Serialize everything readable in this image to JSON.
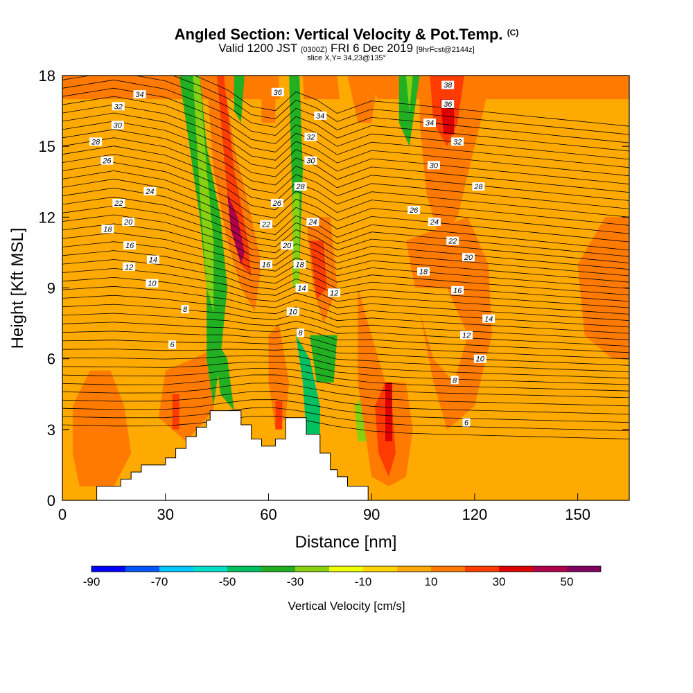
{
  "header": {
    "title": "Angled Section: Vertical Velocity & Pot.Temp.",
    "title_mark": "(C)",
    "subtitle_main": "Valid 1200 JST",
    "subtitle_utc": "(0300Z)",
    "subtitle_date": "FRI 6 Dec 2019",
    "subtitle_fcst": "[9hrFcst@2144z]",
    "slice_info": "slice X,Y= 34,23@135°"
  },
  "chart_data": {
    "type": "heatmap",
    "xlabel": "Distance [nm]",
    "ylabel": "Height [Kft MSL]",
    "xlim": [
      0,
      165
    ],
    "ylim": [
      0,
      18
    ],
    "x_ticks": [
      0,
      30,
      60,
      90,
      120,
      150
    ],
    "y_ticks": [
      0,
      3,
      6,
      9,
      12,
      15,
      18
    ],
    "colorbar": {
      "label": "Vertical Velocity [cm/s]",
      "tick_labels": [
        -90,
        -70,
        -50,
        -30,
        -10,
        10,
        30,
        50
      ],
      "range": [
        -90,
        60
      ],
      "colors": [
        "#0000ff",
        "#0055ff",
        "#00c8ff",
        "#00e0c8",
        "#00c060",
        "#22b022",
        "#88d010",
        "#eeff00",
        "#ffd500",
        "#ffaa00",
        "#ff7a00",
        "#ff3c00",
        "#dd0000",
        "#b0004a",
        "#800060"
      ]
    },
    "terrain": [
      [
        10,
        0
      ],
      [
        10,
        0.6
      ],
      [
        17,
        0.6
      ],
      [
        17,
        0.9
      ],
      [
        20,
        0.9
      ],
      [
        20,
        1.2
      ],
      [
        23,
        1.2
      ],
      [
        23,
        1.5
      ],
      [
        30,
        1.5
      ],
      [
        30,
        1.8
      ],
      [
        33,
        1.8
      ],
      [
        33,
        2.2
      ],
      [
        36,
        2.2
      ],
      [
        36,
        2.7
      ],
      [
        39,
        2.7
      ],
      [
        39,
        3.1
      ],
      [
        42,
        3.1
      ],
      [
        42,
        3.4
      ],
      [
        43,
        3.4
      ],
      [
        43,
        3.8
      ],
      [
        52,
        3.8
      ],
      [
        52,
        3.2
      ],
      [
        55,
        3.2
      ],
      [
        55,
        2.6
      ],
      [
        58,
        2.6
      ],
      [
        58,
        2.3
      ],
      [
        62,
        2.3
      ],
      [
        62,
        2.6
      ],
      [
        65,
        2.6
      ],
      [
        65,
        3.5
      ],
      [
        71,
        3.5
      ],
      [
        71,
        2.8
      ],
      [
        75,
        2.8
      ],
      [
        75,
        2.0
      ],
      [
        78,
        2.0
      ],
      [
        78,
        1.3
      ],
      [
        80,
        1.3
      ],
      [
        80,
        1.0
      ],
      [
        83,
        1.0
      ],
      [
        83,
        0.6
      ],
      [
        89,
        0.6
      ],
      [
        89,
        0
      ]
    ],
    "theta_contour_labels": [
      {
        "text": "34",
        "x": 22.5,
        "y": 17.2
      },
      {
        "text": "32",
        "x": 16.3,
        "y": 16.7
      },
      {
        "text": "30",
        "x": 16.1,
        "y": 15.9
      },
      {
        "text": "28",
        "x": 9.7,
        "y": 15.2
      },
      {
        "text": "26",
        "x": 13.0,
        "y": 14.4
      },
      {
        "text": "24",
        "x": 25.5,
        "y": 13.1
      },
      {
        "text": "22",
        "x": 16.4,
        "y": 12.6
      },
      {
        "text": "20",
        "x": 19.2,
        "y": 11.8
      },
      {
        "text": "18",
        "x": 13.2,
        "y": 11.5
      },
      {
        "text": "16",
        "x": 19.6,
        "y": 10.8
      },
      {
        "text": "14",
        "x": 26.4,
        "y": 10.2
      },
      {
        "text": "12",
        "x": 19.4,
        "y": 9.9
      },
      {
        "text": "10",
        "x": 26.1,
        "y": 9.2
      },
      {
        "text": "8",
        "x": 35.7,
        "y": 8.1
      },
      {
        "text": "6",
        "x": 32.0,
        "y": 6.6
      },
      {
        "text": "36",
        "x": 62.7,
        "y": 17.3
      },
      {
        "text": "34",
        "x": 75.1,
        "y": 16.3
      },
      {
        "text": "32",
        "x": 72.3,
        "y": 15.4
      },
      {
        "text": "30",
        "x": 72.3,
        "y": 14.4
      },
      {
        "text": "28",
        "x": 69.3,
        "y": 13.3
      },
      {
        "text": "26",
        "x": 62.5,
        "y": 12.6
      },
      {
        "text": "24",
        "x": 72.9,
        "y": 11.8
      },
      {
        "text": "22",
        "x": 59.3,
        "y": 11.7
      },
      {
        "text": "20",
        "x": 65.4,
        "y": 10.8
      },
      {
        "text": "18",
        "x": 69.1,
        "y": 10.0
      },
      {
        "text": "16",
        "x": 59.3,
        "y": 10.0
      },
      {
        "text": "14",
        "x": 69.7,
        "y": 9.0
      },
      {
        "text": "12",
        "x": 79.1,
        "y": 8.8
      },
      {
        "text": "10",
        "x": 67.1,
        "y": 8.0
      },
      {
        "text": "8",
        "x": 69.3,
        "y": 7.1
      },
      {
        "text": "38",
        "x": 112.2,
        "y": 17.6
      },
      {
        "text": "36",
        "x": 112.2,
        "y": 16.8
      },
      {
        "text": "34",
        "x": 106.9,
        "y": 16.0
      },
      {
        "text": "32",
        "x": 115.0,
        "y": 15.2
      },
      {
        "text": "30",
        "x": 108.1,
        "y": 14.2
      },
      {
        "text": "28",
        "x": 121.1,
        "y": 13.3
      },
      {
        "text": "26",
        "x": 102.3,
        "y": 12.3
      },
      {
        "text": "24",
        "x": 108.3,
        "y": 11.8
      },
      {
        "text": "22",
        "x": 113.6,
        "y": 11.0
      },
      {
        "text": "20",
        "x": 118.2,
        "y": 10.3
      },
      {
        "text": "18",
        "x": 105.1,
        "y": 9.7
      },
      {
        "text": "16",
        "x": 115.0,
        "y": 8.9
      },
      {
        "text": "14",
        "x": 124.1,
        "y": 7.7
      },
      {
        "text": "12",
        "x": 117.6,
        "y": 7.0
      },
      {
        "text": "10",
        "x": 121.6,
        "y": 6.0
      },
      {
        "text": "8",
        "x": 114.2,
        "y": 5.1
      },
      {
        "text": "6",
        "x": 117.6,
        "y": 3.3
      }
    ]
  }
}
